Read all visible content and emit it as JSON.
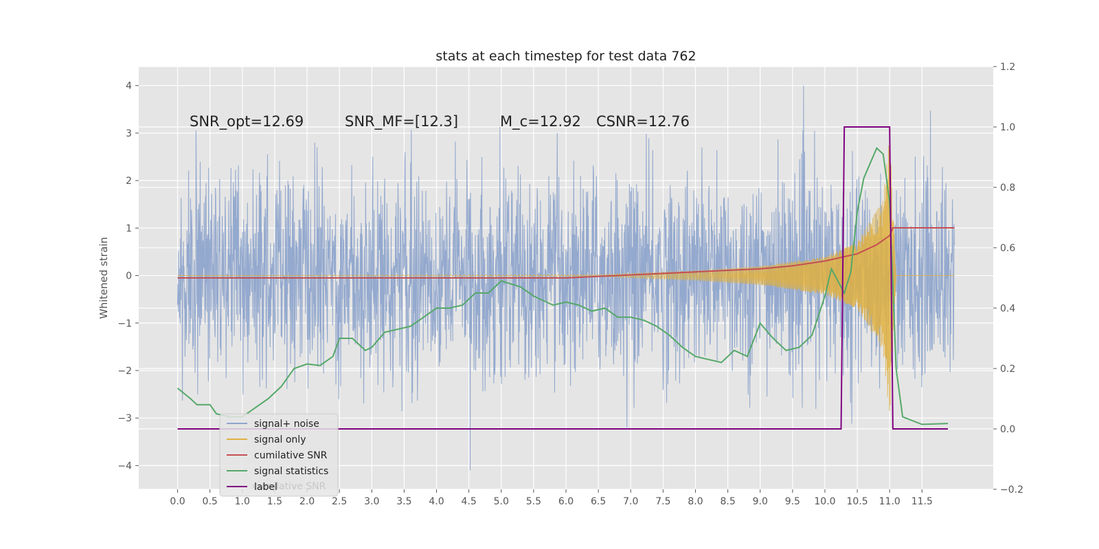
{
  "chart_data": {
    "type": "line",
    "title": "stats at each timestep for test data 762",
    "ylabel": "Whitened strain",
    "xlim": [
      -0.6,
      12.6
    ],
    "ylim": [
      -4.5,
      4.4
    ],
    "y2lim": [
      -0.2,
      1.2
    ],
    "x_ticks": [
      "0.0",
      "0.5",
      "1.0",
      "1.5",
      "2.0",
      "2.5",
      "3.0",
      "3.5",
      "4.0",
      "4.5",
      "5.0",
      "5.5",
      "6.0",
      "6.5",
      "7.0",
      "7.5",
      "8.0",
      "8.5",
      "9.0",
      "9.5",
      "10.0",
      "10.5",
      "11.0",
      "11.5"
    ],
    "y_ticks": [
      "4",
      "3",
      "2",
      "1",
      "0",
      "−1",
      "−2",
      "−3",
      "−4"
    ],
    "y2_ticks": [
      "1.2",
      "1.0",
      "0.8",
      "0.6",
      "0.4",
      "0.2",
      "0.0",
      "−0.2"
    ],
    "grid": true,
    "legend_position": "lower-left",
    "annotations": [
      {
        "text": "SNR_opt=12.69"
      },
      {
        "text": "SNR_MF=[12.3]"
      },
      {
        "text": "M_c=12.92"
      },
      {
        "text": "CSNR=12.76"
      }
    ],
    "series": [
      {
        "name": "signal+ noise",
        "color": "#8fa5cc",
        "axis": "left",
        "description": "whitened noise, approx band -2.2..2.2 with spikes to ±4",
        "x_range": [
          0,
          12
        ]
      },
      {
        "name": "signal only",
        "color": "#e0b040",
        "axis": "left",
        "description": "chirp envelope growing from ~6.5 to 11.0",
        "envelope": {
          "x": [
            6.5,
            8,
            9,
            10,
            10.5,
            10.9,
            11.0,
            11.1
          ],
          "amp": [
            0.02,
            0.1,
            0.2,
            0.4,
            0.7,
            1.6,
            3.0,
            0.0
          ]
        }
      },
      {
        "name": "cumilative SNR",
        "color": "#c44e52",
        "axis": "right",
        "x": [
          0,
          6,
          7,
          8,
          9,
          9.5,
          10,
          10.5,
          10.8,
          11.0,
          11.05,
          12.0
        ],
        "y": [
          0.5,
          0.5,
          0.51,
          0.52,
          0.53,
          0.54,
          0.556,
          0.58,
          0.61,
          0.64,
          0.666,
          0.666
        ]
      },
      {
        "name": "signal statistics",
        "color": "#55a868",
        "axis": "right",
        "x": [
          0,
          0.2,
          0.3,
          0.5,
          0.6,
          0.8,
          1.0,
          1.2,
          1.4,
          1.6,
          1.8,
          2.0,
          2.2,
          2.4,
          2.5,
          2.7,
          2.9,
          3.0,
          3.2,
          3.4,
          3.6,
          3.8,
          4.0,
          4.2,
          4.4,
          4.6,
          4.8,
          5.0,
          5.3,
          5.5,
          5.8,
          6.0,
          6.2,
          6.4,
          6.6,
          6.8,
          7.0,
          7.2,
          7.4,
          7.6,
          7.8,
          8.0,
          8.2,
          8.4,
          8.6,
          8.8,
          9.0,
          9.2,
          9.4,
          9.6,
          9.8,
          10.0,
          10.1,
          10.2,
          10.3,
          10.4,
          10.5,
          10.6,
          10.7,
          10.8,
          10.9,
          11.0,
          11.1,
          11.2,
          11.5,
          11.9
        ],
        "y": [
          0.135,
          0.1,
          0.08,
          0.08,
          0.05,
          0.04,
          0.04,
          0.07,
          0.1,
          0.14,
          0.2,
          0.215,
          0.21,
          0.24,
          0.3,
          0.3,
          0.26,
          0.27,
          0.32,
          0.33,
          0.34,
          0.37,
          0.4,
          0.4,
          0.41,
          0.45,
          0.45,
          0.49,
          0.47,
          0.44,
          0.41,
          0.42,
          0.41,
          0.39,
          0.4,
          0.37,
          0.37,
          0.36,
          0.34,
          0.31,
          0.27,
          0.24,
          0.23,
          0.22,
          0.26,
          0.24,
          0.35,
          0.3,
          0.26,
          0.27,
          0.31,
          0.44,
          0.53,
          0.49,
          0.45,
          0.52,
          0.72,
          0.83,
          0.88,
          0.93,
          0.91,
          0.75,
          0.2,
          0.04,
          0.015,
          0.018
        ]
      },
      {
        "name": "label",
        "color": "#800080",
        "axis": "right",
        "x": [
          0,
          10.25,
          10.3,
          11.0,
          11.05,
          11.9
        ],
        "y": [
          0,
          0,
          1,
          1,
          0,
          0
        ]
      }
    ],
    "legend_overlap_text": "cumilative SNR"
  }
}
